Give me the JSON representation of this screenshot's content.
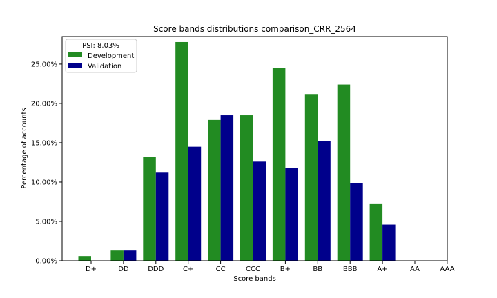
{
  "chart_data": {
    "type": "bar",
    "title": "Score bands distributions comparison_CRR_2564",
    "xlabel": "Score bands",
    "ylabel": "Percentage of accounts",
    "categories": [
      "D+",
      "DD",
      "DDD",
      "C+",
      "CC",
      "CCC",
      "B+",
      "BB",
      "BBB",
      "A+",
      "AA",
      "AAA"
    ],
    "series": [
      {
        "name": "Development",
        "color": "#228b22",
        "values": [
          0.6,
          1.3,
          13.2,
          27.8,
          17.9,
          18.5,
          24.5,
          21.2,
          22.4,
          7.2,
          0,
          0
        ]
      },
      {
        "name": "Validation",
        "color": "#00008b",
        "values": [
          0,
          1.3,
          11.2,
          14.5,
          18.5,
          12.6,
          11.8,
          15.2,
          9.9,
          4.6,
          0,
          0
        ]
      }
    ],
    "yticks": [
      0,
      5,
      10,
      15,
      20,
      25
    ],
    "ytick_labels": [
      "0.00%",
      "5.00%",
      "10.00%",
      "15.00%",
      "20.00%",
      "25.00%"
    ],
    "ylim": [
      0,
      28.5
    ],
    "legend": {
      "title": "PSI: 8.03%",
      "placement": "top-left",
      "entries": [
        "Development",
        "Validation"
      ]
    },
    "grid": false
  }
}
